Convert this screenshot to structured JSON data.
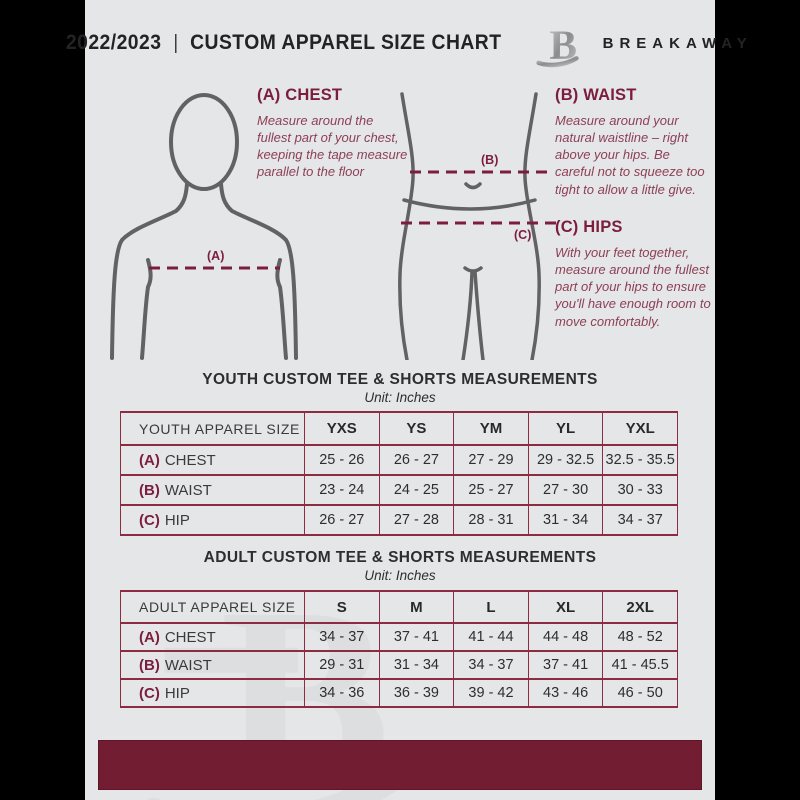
{
  "colors": {
    "page_background": "#e5e6e8",
    "letterbox": "#000000",
    "footer_maroon": "#731d33",
    "heading_maroon": "#7b1e3c",
    "body_maroon": "#8d4055",
    "table_border_maroon": "#8c2b42",
    "text_dark": "#2e2e30",
    "figure_gray": "#626264"
  },
  "header": {
    "season": "2022/2023",
    "divider": "|",
    "title": "CUSTOM APPAREL SIZE CHART",
    "brand": "BREAKAWAY"
  },
  "guide": {
    "chest": {
      "heading": "(A) CHEST",
      "body": "Measure around the fullest part of your chest, keeping the tape measure parallel to the floor"
    },
    "waist": {
      "heading": "(B) WAIST",
      "body": "Measure around your natural waistline – right above your hips. Be careful not to squeeze too tight to allow a little give."
    },
    "hips": {
      "heading": "(C) HIPS",
      "body": "With your feet together, measure around the fullest part of your hips to ensure you'll have enough room to move comfortably."
    },
    "marker_chest": "(A)",
    "marker_waist": "(B)",
    "marker_hips": "(C)"
  },
  "tables": [
    {
      "title": "YOUTH CUSTOM TEE & SHORTS MEASUREMENTS",
      "unit": "Unit: Inches",
      "size_column_header": "YOUTH APPAREL SIZE",
      "sizes": [
        "YXS",
        "YS",
        "YM",
        "YL",
        "YXL"
      ],
      "rows": [
        {
          "marker": "(A)",
          "label": "CHEST",
          "values": [
            "25 - 26",
            "26 - 27",
            "27 - 29",
            "29 - 32.5",
            "32.5 - 35.5"
          ]
        },
        {
          "marker": "(B)",
          "label": "WAIST",
          "values": [
            "23 - 24",
            "24 - 25",
            "25 - 27",
            "27 - 30",
            "30 - 33"
          ]
        },
        {
          "marker": "(C)",
          "label": "HIP",
          "values": [
            "26 - 27",
            "27 - 28",
            "28 - 31",
            "31 - 34",
            "34 - 37"
          ]
        }
      ]
    },
    {
      "title": "ADULT CUSTOM TEE & SHORTS MEASUREMENTS",
      "unit": "Unit: Inches",
      "size_column_header": "ADULT APPAREL SIZE",
      "sizes": [
        "S",
        "M",
        "L",
        "XL",
        "2XL"
      ],
      "rows": [
        {
          "marker": "(A)",
          "label": "CHEST",
          "values": [
            "34 - 37",
            "37 - 41",
            "41 - 44",
            "44 - 48",
            "48 - 52"
          ]
        },
        {
          "marker": "(B)",
          "label": "WAIST",
          "values": [
            "29 - 31",
            "31 - 34",
            "34 - 37",
            "37 - 41",
            "41 - 45.5"
          ]
        },
        {
          "marker": "(C)",
          "label": "HIP",
          "values": [
            "34 - 36",
            "36 - 39",
            "39 - 42",
            "43 - 46",
            "46 - 50"
          ]
        }
      ]
    }
  ]
}
